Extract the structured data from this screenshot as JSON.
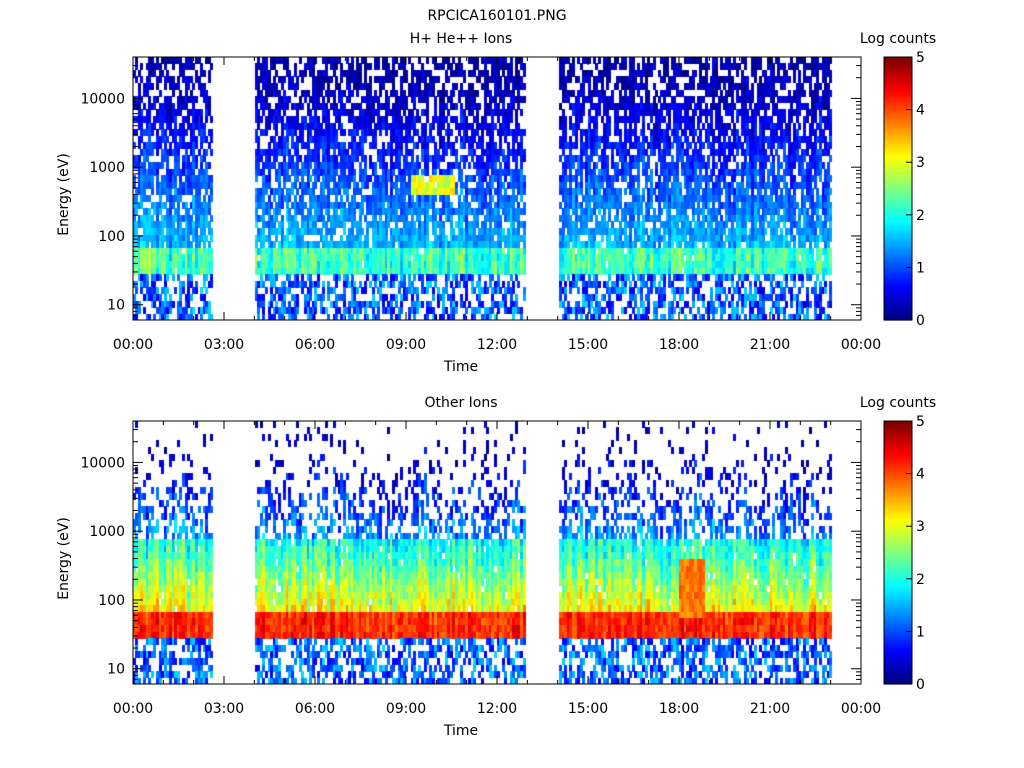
{
  "figure_title": "RPCICA160101.PNG",
  "chart_data": [
    {
      "type": "heatmap",
      "title": "H+ He++ Ions",
      "xlabel": "Time",
      "ylabel": "Energy (eV)",
      "x_ticks": [
        "00:00",
        "03:00",
        "06:00",
        "09:00",
        "12:00",
        "15:00",
        "18:00",
        "21:00",
        "00:00"
      ],
      "x_range_hours": [
        0,
        24
      ],
      "y_scale": "log",
      "y_range": [
        6,
        40000
      ],
      "y_ticks": [
        {
          "value": 10,
          "label": "10"
        },
        {
          "value": 100,
          "label": "100"
        },
        {
          "value": 1000,
          "label": "1000"
        },
        {
          "value": 10000,
          "label": "10000"
        }
      ],
      "data_gaps_hours": [
        [
          2.6,
          4.0
        ],
        [
          12.9,
          14.0
        ],
        [
          23.0,
          24.0
        ]
      ],
      "colorbar": {
        "label": "Log counts",
        "range": [
          0,
          5
        ],
        "ticks": [
          "0",
          "1",
          "2",
          "3",
          "4",
          "5"
        ]
      },
      "features": [
        {
          "note": "main band",
          "energy_ev": [
            35,
            60
          ],
          "log_counts": 2.2
        },
        {
          "note": "burst",
          "time_hours": [
            9.1,
            10.6
          ],
          "energy_ev": [
            400,
            800
          ],
          "log_counts": 3.0
        }
      ]
    },
    {
      "type": "heatmap",
      "title": "Other Ions",
      "xlabel": "Time",
      "ylabel": "Energy (eV)",
      "x_ticks": [
        "00:00",
        "03:00",
        "06:00",
        "09:00",
        "12:00",
        "15:00",
        "18:00",
        "21:00",
        "00:00"
      ],
      "x_range_hours": [
        0,
        24
      ],
      "y_scale": "log",
      "y_range": [
        6,
        40000
      ],
      "y_ticks": [
        {
          "value": 10,
          "label": "10"
        },
        {
          "value": 100,
          "label": "100"
        },
        {
          "value": 1000,
          "label": "1000"
        },
        {
          "value": 10000,
          "label": "10000"
        }
      ],
      "data_gaps_hours": [
        [
          2.6,
          4.0
        ],
        [
          12.9,
          14.0
        ],
        [
          23.0,
          24.0
        ]
      ],
      "colorbar": {
        "label": "Log counts",
        "range": [
          0,
          5
        ],
        "ticks": [
          "0",
          "1",
          "2",
          "3",
          "4",
          "5"
        ]
      },
      "features": [
        {
          "note": "main band",
          "energy_ev": [
            35,
            70
          ],
          "log_counts": 4.2
        },
        {
          "note": "enhancement",
          "time_hours": [
            18.0,
            18.8
          ],
          "energy_ev": [
            60,
            400
          ],
          "log_counts": 3.8
        }
      ]
    }
  ]
}
